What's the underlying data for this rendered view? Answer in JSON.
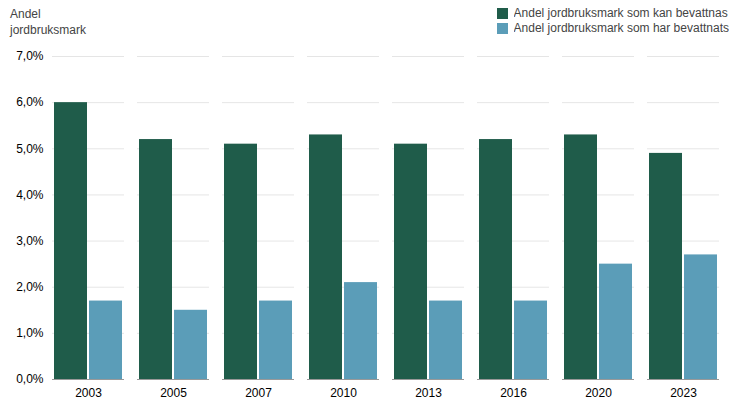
{
  "chart_data": {
    "type": "bar",
    "categories": [
      "2003",
      "2005",
      "2007",
      "2010",
      "2013",
      "2016",
      "2020",
      "2023"
    ],
    "series": [
      {
        "name": "Andel jordbruksmark som kan bevattnas",
        "color": "#1f5c4a",
        "values": [
          0.06,
          0.052,
          0.051,
          0.053,
          0.051,
          0.052,
          0.053,
          0.049
        ]
      },
      {
        "name": "Andel jordbruksmark som har bevattnats",
        "color": "#5b9db8",
        "values": [
          0.017,
          0.015,
          0.017,
          0.021,
          0.017,
          0.017,
          0.025,
          0.027
        ]
      }
    ],
    "ylabel": "Andel\njordbruksmark",
    "ylim": [
      0.0,
      0.07
    ],
    "yticks": [
      {
        "value": 0.0,
        "label": "0,0%"
      },
      {
        "value": 0.01,
        "label": "1,0%"
      },
      {
        "value": 0.02,
        "label": "2,0%"
      },
      {
        "value": 0.03,
        "label": "3,0%"
      },
      {
        "value": 0.04,
        "label": "4,0%"
      },
      {
        "value": 0.05,
        "label": "5,0%"
      },
      {
        "value": 0.06,
        "label": "6,0%"
      },
      {
        "value": 0.07,
        "label": "7,0%"
      }
    ],
    "grid": true,
    "legend": "upper right"
  }
}
